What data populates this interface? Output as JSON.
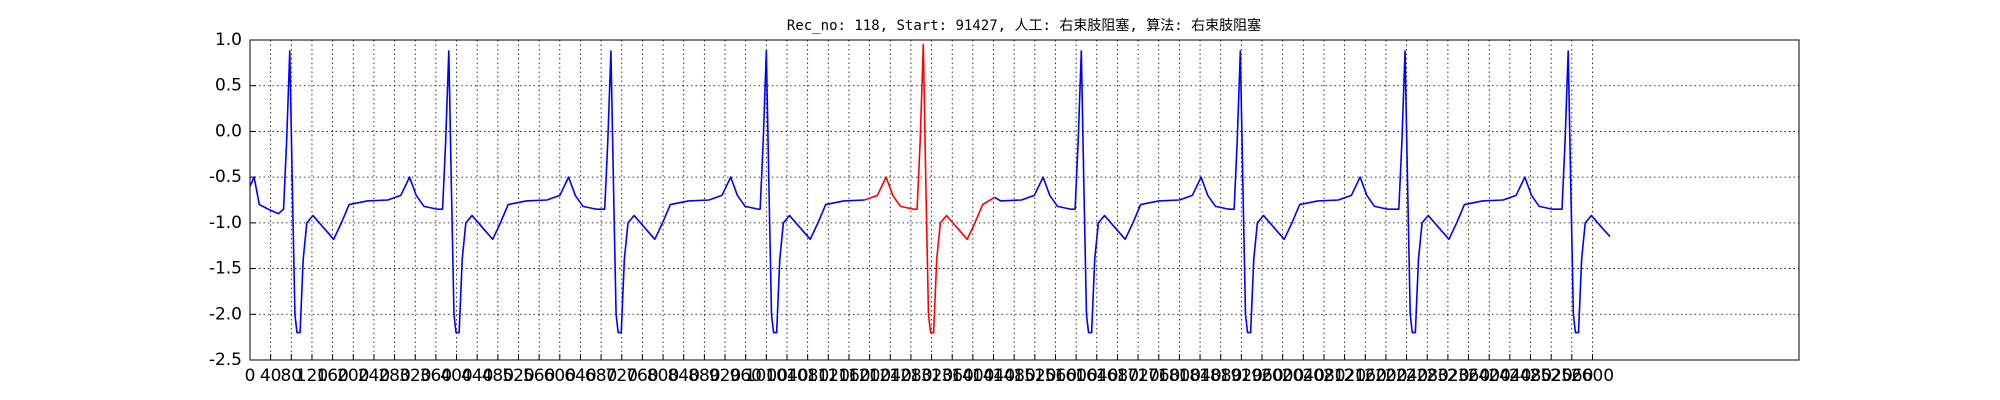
{
  "chart_data": {
    "type": "line",
    "title": "Rec_no: 118, Start: 91427, 人工: 右束肢阻塞, 算法: 右束肢阻塞",
    "xlim": [
      0,
      3000
    ],
    "ylim": [
      -2.5,
      1.0
    ],
    "xticks": [
      0,
      40,
      80,
      120,
      160,
      200,
      240,
      280,
      320,
      360,
      400,
      440,
      480,
      520,
      560,
      600,
      640,
      680,
      720,
      760,
      800,
      840,
      880,
      920,
      960,
      1000,
      1040,
      1080,
      1120,
      1160,
      1200,
      1240,
      1280,
      1320,
      1360,
      1400,
      1440,
      1480,
      1520,
      1560,
      1600,
      1640,
      1680,
      1720,
      1760,
      1800,
      1840,
      1880,
      1920,
      1960,
      2000,
      2040,
      2080,
      2120,
      2160,
      2200,
      2240,
      2280,
      2320,
      2360,
      2400,
      2440,
      2480,
      2520,
      2560,
      2600
    ],
    "yticks": [
      {
        "value": 1.0,
        "label": "1.0"
      },
      {
        "value": 0.5,
        "label": "0.5"
      },
      {
        "value": 0.0,
        "label": "0.0"
      },
      {
        "value": -0.5,
        "label": "-0.5"
      },
      {
        "value": -1.0,
        "label": "-1.0"
      },
      {
        "value": -1.5,
        "label": "-1.5"
      },
      {
        "value": -2.0,
        "label": "-2.0"
      },
      {
        "value": -2.5,
        "label": "-2.5"
      }
    ],
    "grid": true,
    "series": [
      {
        "color": "#0000ff",
        "x": [
          0,
          8,
          18,
          35,
          55,
          65,
          71,
          77,
          82,
          87,
          91,
          97,
          103,
          110,
          122,
          142,
          162,
          177,
          192,
          227,
          267,
          292,
          309,
          322,
          337,
          362,
          373,
          379,
          385,
          390,
          395,
          399,
          405,
          411,
          418,
          430,
          450,
          470,
          485,
          500,
          535,
          575,
          600,
          617,
          630,
          645,
          670,
          687,
          693,
          699,
          704,
          709,
          713,
          719,
          725,
          732,
          744,
          764,
          784,
          799,
          814,
          849,
          889,
          914,
          931,
          944,
          959,
          984,
          988,
          994,
          1000,
          1005,
          1010,
          1014,
          1020,
          1026,
          1033,
          1045,
          1065,
          1085,
          1100,
          1115,
          1150,
          1190,
          1300,
          1442,
          1454,
          1494,
          1519,
          1536,
          1549,
          1564,
          1589,
          1598,
          1604,
          1610,
          1615,
          1620,
          1624,
          1630,
          1636,
          1643,
          1655,
          1675,
          1695,
          1710,
          1725,
          1760,
          1800,
          1825,
          1842,
          1855,
          1870,
          1895,
          1906,
          1912,
          1918,
          1923,
          1928,
          1932,
          1938,
          1944,
          1951,
          1963,
          1983,
          2003,
          2018,
          2033,
          2068,
          2108,
          2133,
          2150,
          2163,
          2178,
          2203,
          2225,
          2231,
          2237,
          2242,
          2247,
          2251,
          2257,
          2263,
          2270,
          2282,
          2302,
          2322,
          2337,
          2352,
          2387,
          2427,
          2452,
          2469,
          2482,
          2497,
          2522,
          2541,
          2547,
          2553,
          2558,
          2563,
          2567,
          2573,
          2579,
          2586,
          2598,
          2618,
          2634
        ],
        "values": [
          -0.6,
          -0.5,
          -0.8,
          -0.85,
          -0.9,
          -0.85,
          -0.1,
          0.88,
          -0.6,
          -2.0,
          -2.2,
          -2.2,
          -1.4,
          -1.0,
          -0.92,
          -1.05,
          -1.18,
          -1.0,
          -0.8,
          -0.76,
          -0.75,
          -0.7,
          -0.5,
          -0.7,
          -0.82,
          -0.85,
          -0.85,
          -0.1,
          0.88,
          -0.6,
          -2.0,
          -2.2,
          -2.2,
          -1.4,
          -1.0,
          -0.92,
          -1.05,
          -1.18,
          -1.0,
          -0.8,
          -0.76,
          -0.75,
          -0.7,
          -0.5,
          -0.7,
          -0.82,
          -0.85,
          -0.85,
          -0.1,
          0.88,
          -0.6,
          -2.0,
          -2.2,
          -2.2,
          -1.4,
          -1.0,
          -0.92,
          -1.05,
          -1.18,
          -1.0,
          -0.8,
          -0.76,
          -0.75,
          -0.7,
          -0.5,
          -0.7,
          -0.82,
          -0.85,
          -0.85,
          -0.1,
          0.88,
          -0.6,
          -2.0,
          -2.2,
          -2.2,
          -1.4,
          -1.0,
          -0.92,
          -1.05,
          -1.18,
          -1.0,
          -0.8,
          -0.76,
          -0.75,
          null,
          -0.72,
          -0.76,
          -0.75,
          -0.7,
          -0.5,
          -0.7,
          -0.82,
          -0.85,
          -0.85,
          -0.1,
          0.88,
          -0.6,
          -2.0,
          -2.2,
          -2.2,
          -1.4,
          -1.0,
          -0.92,
          -1.05,
          -1.18,
          -1.0,
          -0.8,
          -0.76,
          -0.75,
          -0.7,
          -0.5,
          -0.7,
          -0.82,
          -0.85,
          -0.85,
          -0.1,
          0.88,
          -0.6,
          -2.0,
          -2.2,
          -2.2,
          -1.4,
          -1.0,
          -0.92,
          -1.05,
          -1.18,
          -1.0,
          -0.8,
          -0.76,
          -0.75,
          -0.7,
          -0.5,
          -0.7,
          -0.82,
          -0.85,
          -0.85,
          -0.1,
          0.88,
          -0.6,
          -2.0,
          -2.2,
          -2.2,
          -1.4,
          -1.0,
          -0.92,
          -1.05,
          -1.18,
          -1.0,
          -0.8,
          -0.76,
          -0.75,
          -0.7,
          -0.5,
          -0.7,
          -0.82,
          -0.85,
          -0.85,
          -0.1,
          0.88,
          -0.6,
          -2.0,
          -2.2,
          -2.2,
          -1.4,
          -1.0,
          -0.92,
          -1.05,
          -1.15
        ]
      },
      {
        "color": "#ff0000",
        "x": [
          1190,
          1215,
          1232,
          1245,
          1260,
          1285,
          1292,
          1298,
          1304,
          1309,
          1314,
          1318,
          1324,
          1330,
          1337,
          1349,
          1369,
          1389,
          1404,
          1419,
          1442
        ],
        "values": [
          -0.75,
          -0.7,
          -0.5,
          -0.7,
          -0.82,
          -0.85,
          -0.85,
          -0.1,
          0.95,
          -0.6,
          -2.0,
          -2.2,
          -2.2,
          -1.4,
          -1.0,
          -0.92,
          -1.05,
          -1.18,
          -1.0,
          -0.8,
          -0.72
        ]
      }
    ]
  }
}
